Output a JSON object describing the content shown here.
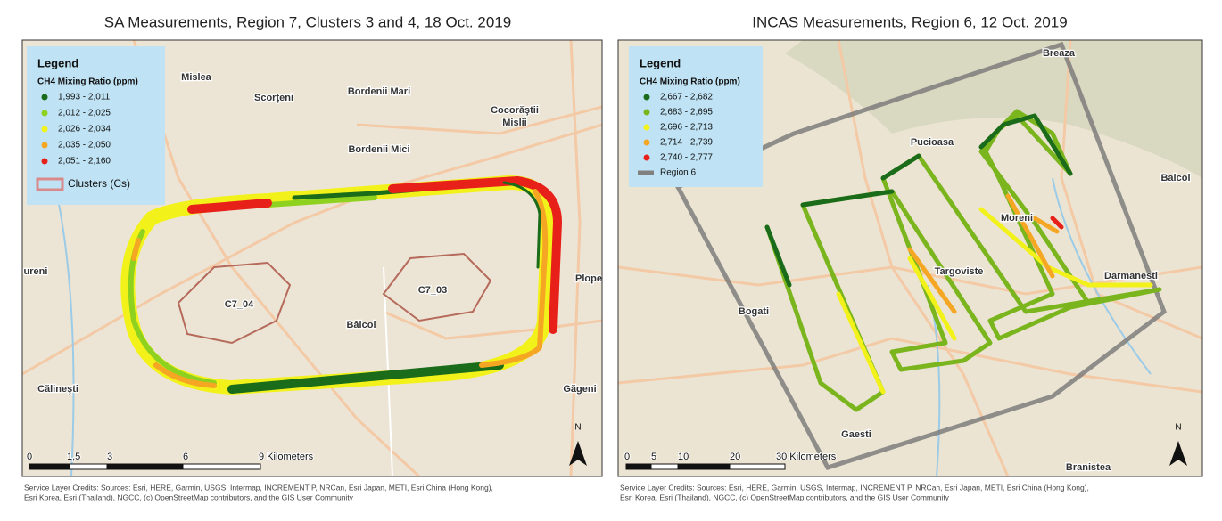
{
  "panels": [
    {
      "title": "SA Measurements, Region 7, Clusters 3 and 4, 18 Oct. 2019",
      "legend": {
        "title": "Legend",
        "subtitle": "CH4 Mixing Ratio (ppm)",
        "items": [
          {
            "label": "1,993 - 2,011",
            "color": "#1a6b1a"
          },
          {
            "label": "2,012 - 2,025",
            "color": "#8fd11f"
          },
          {
            "label": "2,026 - 2,034",
            "color": "#f2f21a"
          },
          {
            "label": "2,035 - 2,050",
            "color": "#f5a623"
          },
          {
            "label": "2,051 - 2,160",
            "color": "#e8201a"
          }
        ],
        "extra": {
          "label": "Clusters (Cs)",
          "color": "#d9898a"
        }
      },
      "places": [
        "Mislea",
        "Scorţeni",
        "Bordenii Mari",
        "Cocorăştii",
        "Mislii",
        "Bordenii Mici",
        "Bâlcoi",
        "Călineşti",
        "Găgeni",
        "Plope",
        "ureni",
        "C7_04",
        "C7_03"
      ],
      "scale": [
        "0",
        "1,5",
        "3",
        "6",
        "9 Kilometers"
      ],
      "north": "N",
      "credits": [
        "Service Layer Credits: Sources: Esri, HERE, Garmin, USGS, Intermap, INCREMENT P, NRCan, Esri Japan, METI, Esri China (Hong Kong),",
        "Esri Korea, Esri (Thailand), NGCC, (c) OpenStreetMap contributors, and the GIS User Community"
      ]
    },
    {
      "title": "INCAS Measurements, Region 6, 12 Oct. 2019",
      "legend": {
        "title": "Legend",
        "subtitle": "CH4 Mixing Ratio (ppm)",
        "items": [
          {
            "label": "2,667 - 2,682",
            "color": "#1a6b1a"
          },
          {
            "label": "2,683 - 2,695",
            "color": "#7ab51d"
          },
          {
            "label": "2,696 - 2,713",
            "color": "#f2f21a"
          },
          {
            "label": "2,714 - 2,739",
            "color": "#f5a623"
          },
          {
            "label": "2,740 - 2,777",
            "color": "#e8201a"
          }
        ],
        "extra": {
          "label": "Region 6",
          "color": "#808080"
        }
      },
      "places": [
        "Breaza",
        "Pucioasa",
        "Balcoi",
        "Moreni",
        "Targoviste",
        "Darmanesti",
        "Bogati",
        "Gaesti",
        "Branistea"
      ],
      "scale": [
        "0",
        "5",
        "10",
        "20",
        "30 Kilometers"
      ],
      "north": "N",
      "credits": [
        "Service Layer Credits: Sources: Esri, HERE, Garmin, USGS, Intermap, INCREMENT P, NRCan, Esri Japan, METI, Esri China (Hong Kong),",
        "Esri Korea, Esri (Thailand), NGCC, (c) OpenStreetMap contributors, and the GIS User Community"
      ]
    }
  ]
}
